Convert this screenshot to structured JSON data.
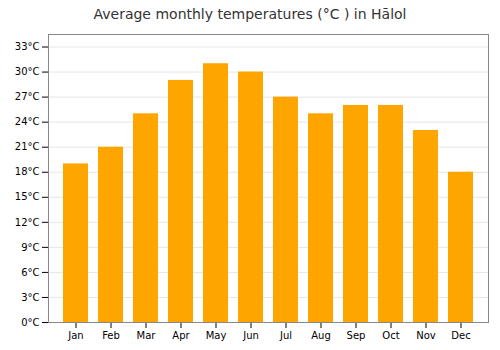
{
  "chart_data": {
    "type": "bar",
    "title": "Average monthly temperatures (°C ) in Hālol",
    "categories": [
      "Jan",
      "Feb",
      "Mar",
      "Apr",
      "May",
      "Jun",
      "Jul",
      "Aug",
      "Sep",
      "Oct",
      "Nov",
      "Dec"
    ],
    "values": [
      19.0,
      21.0,
      25.0,
      29.0,
      31.0,
      30.0,
      27.0,
      25.0,
      26.0,
      26.0,
      23.0,
      18.0
    ],
    "color": "#FFA500",
    "ylim": [
      0,
      34.5
    ],
    "yticks": [
      {
        "value": 0,
        "label": "0°C"
      },
      {
        "value": 3,
        "label": "3°C"
      },
      {
        "value": 6,
        "label": "6°C"
      },
      {
        "value": 9,
        "label": "9°C"
      },
      {
        "value": 12,
        "label": "12°C"
      },
      {
        "value": 15,
        "label": "15°C"
      },
      {
        "value": 18,
        "label": "18°C"
      },
      {
        "value": 21,
        "label": "21°C"
      },
      {
        "value": 24,
        "label": "24°C"
      },
      {
        "value": 27,
        "label": "27°C"
      },
      {
        "value": 30,
        "label": "30°C"
      },
      {
        "value": 33,
        "label": "33°C"
      }
    ],
    "grid": true
  }
}
